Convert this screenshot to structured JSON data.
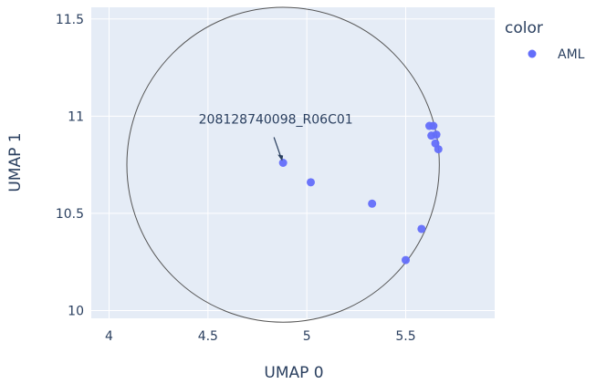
{
  "chart_data": {
    "type": "scatter",
    "xlabel": "UMAP 0",
    "ylabel": "UMAP 1",
    "xlim": [
      3.91,
      5.95
    ],
    "ylim": [
      9.96,
      11.56
    ],
    "x_ticks": [
      4,
      4.5,
      5,
      5.5
    ],
    "x_tick_labels": [
      "4",
      "4.5",
      "5",
      "5.5"
    ],
    "y_ticks": [
      10,
      10.5,
      11,
      11.5
    ],
    "y_tick_labels": [
      "10",
      "10.5",
      "11",
      "11.5"
    ],
    "grid": true,
    "legend": {
      "title": "color",
      "placement": "right"
    },
    "series": [
      {
        "name": "AML",
        "color": "#636efa",
        "points": [
          {
            "x": 4.88,
            "y": 10.76
          },
          {
            "x": 5.02,
            "y": 10.66
          },
          {
            "x": 5.33,
            "y": 10.55
          },
          {
            "x": 5.58,
            "y": 10.42
          },
          {
            "x": 5.5,
            "y": 10.26
          },
          {
            "x": 5.62,
            "y": 10.95
          },
          {
            "x": 5.64,
            "y": 10.95
          },
          {
            "x": 5.63,
            "y": 10.9
          },
          {
            "x": 5.655,
            "y": 10.905
          },
          {
            "x": 5.65,
            "y": 10.86
          },
          {
            "x": 5.665,
            "y": 10.83
          }
        ]
      }
    ],
    "circle": {
      "cx": 4.88,
      "cy": 10.75,
      "rx": 0.79,
      "ry": 0.81,
      "color": "#555555"
    },
    "annotations": [
      {
        "text": "208128740098_R06C01",
        "x": 4.88,
        "y": 10.76
      }
    ]
  }
}
